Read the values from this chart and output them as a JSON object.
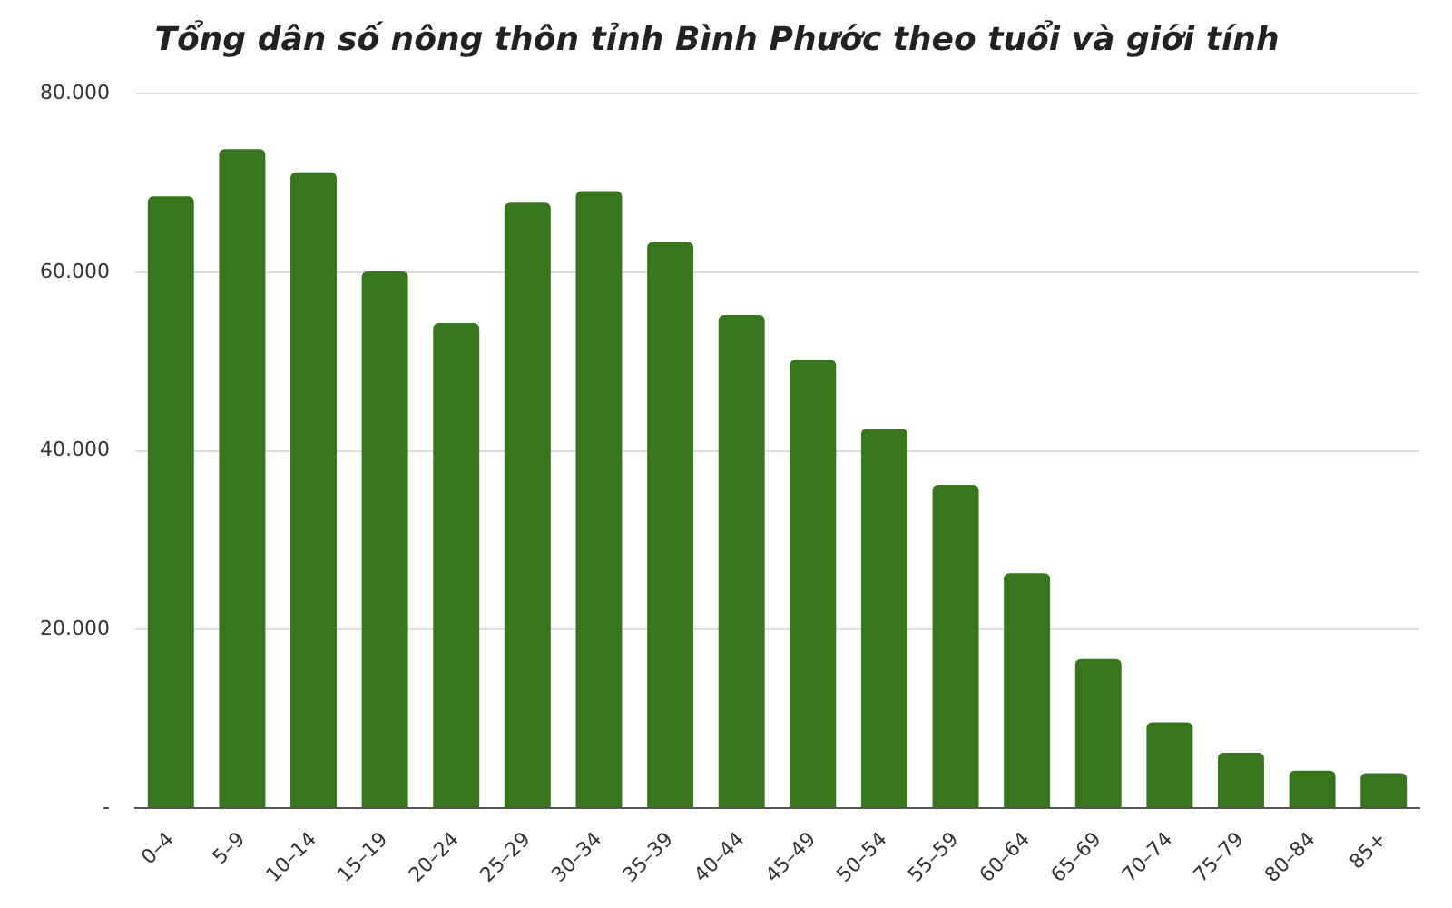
{
  "chart_data": {
    "type": "bar",
    "title": "Tổng dân số nông thôn tỉnh Bình Phước theo tuổi và giới tính",
    "categories": [
      "0–4",
      "5–9",
      "10–14",
      "15–19",
      "20–24",
      "25–29",
      "30–34",
      "35–39",
      "40–44",
      "45–49",
      "50–54",
      "55–59",
      "60–64",
      "65–69",
      "70–74",
      "75–79",
      "80–84",
      "85+"
    ],
    "values": [
      68500,
      73800,
      71200,
      60100,
      54300,
      67800,
      69100,
      63400,
      55200,
      50200,
      42500,
      36200,
      26300,
      16700,
      9600,
      6200,
      4200,
      3900
    ],
    "color": "#38761d",
    "ylim": [
      0,
      80000
    ],
    "yticks": [
      {
        "value": 0,
        "label": "-"
      },
      {
        "value": 20000,
        "label": "20.000"
      },
      {
        "value": 40000,
        "label": "40.000"
      },
      {
        "value": 60000,
        "label": "60.000"
      },
      {
        "value": 80000,
        "label": "80.000"
      }
    ],
    "grid": "y",
    "legend": false
  }
}
